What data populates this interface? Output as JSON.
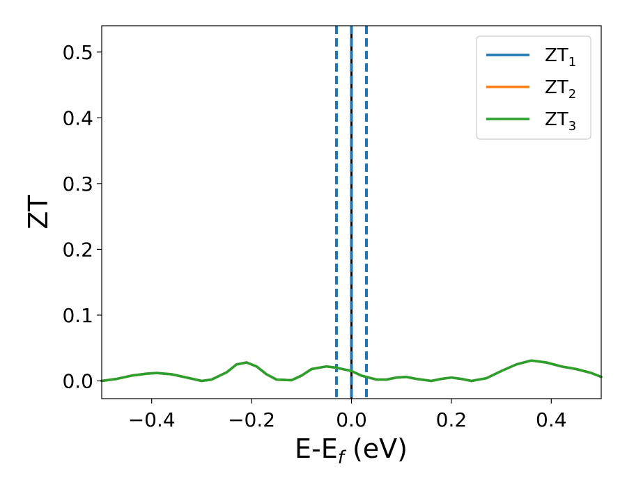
{
  "chart_data": {
    "type": "line",
    "title": "",
    "xlabel": "E-E",
    "xlabel_sub": "f",
    "xlabel_unit": " (eV)",
    "ylabel": "ZT",
    "xlim": [
      -0.5,
      0.5
    ],
    "ylim": [
      -0.027,
      0.54
    ],
    "xticks": [
      -0.4,
      -0.2,
      0.0,
      0.2,
      0.4
    ],
    "xtick_labels": [
      "−0.4",
      "−0.2",
      "0.0",
      "0.2",
      "0.4"
    ],
    "yticks": [
      0.0,
      0.1,
      0.2,
      0.3,
      0.4,
      0.5
    ],
    "ytick_labels": [
      "0.0",
      "0.1",
      "0.2",
      "0.3",
      "0.4",
      "0.5"
    ],
    "grid": false,
    "legend_position": "top-right",
    "x": [
      -0.5,
      -0.47,
      -0.44,
      -0.41,
      -0.39,
      -0.36,
      -0.33,
      -0.3,
      -0.28,
      -0.25,
      -0.23,
      -0.21,
      -0.19,
      -0.17,
      -0.15,
      -0.12,
      -0.1,
      -0.08,
      -0.05,
      -0.03,
      0.0,
      0.02,
      0.05,
      0.07,
      0.09,
      0.11,
      0.13,
      0.16,
      0.18,
      0.2,
      0.22,
      0.24,
      0.27,
      0.3,
      0.33,
      0.36,
      0.39,
      0.42,
      0.45,
      0.48,
      0.5
    ],
    "series": [
      {
        "name": "ZT",
        "sub": "1",
        "color": "#1f77b4",
        "values": [
          0.0,
          0.003,
          0.008,
          0.011,
          0.012,
          0.01,
          0.005,
          0.0,
          0.002,
          0.013,
          0.025,
          0.028,
          0.022,
          0.01,
          0.002,
          0.001,
          0.008,
          0.018,
          0.022,
          0.02,
          0.015,
          0.008,
          0.002,
          0.002,
          0.005,
          0.006,
          0.003,
          0.0,
          0.003,
          0.005,
          0.003,
          0.0,
          0.004,
          0.015,
          0.025,
          0.031,
          0.028,
          0.022,
          0.018,
          0.012,
          0.006
        ]
      },
      {
        "name": "ZT",
        "sub": "2",
        "color": "#ff7f0e",
        "values": [
          0.0,
          0.003,
          0.008,
          0.011,
          0.012,
          0.01,
          0.005,
          0.0,
          0.002,
          0.013,
          0.025,
          0.028,
          0.022,
          0.01,
          0.002,
          0.001,
          0.008,
          0.018,
          0.022,
          0.02,
          0.015,
          0.008,
          0.002,
          0.002,
          0.005,
          0.006,
          0.003,
          0.0,
          0.003,
          0.005,
          0.003,
          0.0,
          0.004,
          0.015,
          0.025,
          0.031,
          0.028,
          0.022,
          0.018,
          0.012,
          0.006
        ]
      },
      {
        "name": "ZT",
        "sub": "3",
        "color": "#2ca02c",
        "values": [
          0.0,
          0.003,
          0.008,
          0.011,
          0.012,
          0.01,
          0.005,
          0.0,
          0.002,
          0.013,
          0.025,
          0.028,
          0.022,
          0.01,
          0.002,
          0.001,
          0.008,
          0.018,
          0.022,
          0.02,
          0.015,
          0.008,
          0.002,
          0.002,
          0.005,
          0.006,
          0.003,
          0.0,
          0.003,
          0.005,
          0.003,
          0.0,
          0.004,
          0.015,
          0.025,
          0.031,
          0.028,
          0.022,
          0.018,
          0.012,
          0.006
        ]
      }
    ],
    "vlines": [
      {
        "x": -0.03,
        "style": "dashed",
        "color": "#1f77b4"
      },
      {
        "x": 0.0,
        "style": "solid",
        "color": "#000000"
      },
      {
        "x": 0.0,
        "style": "dashed",
        "color": "#1f77b4"
      },
      {
        "x": 0.03,
        "style": "dashed",
        "color": "#1f77b4"
      }
    ]
  }
}
